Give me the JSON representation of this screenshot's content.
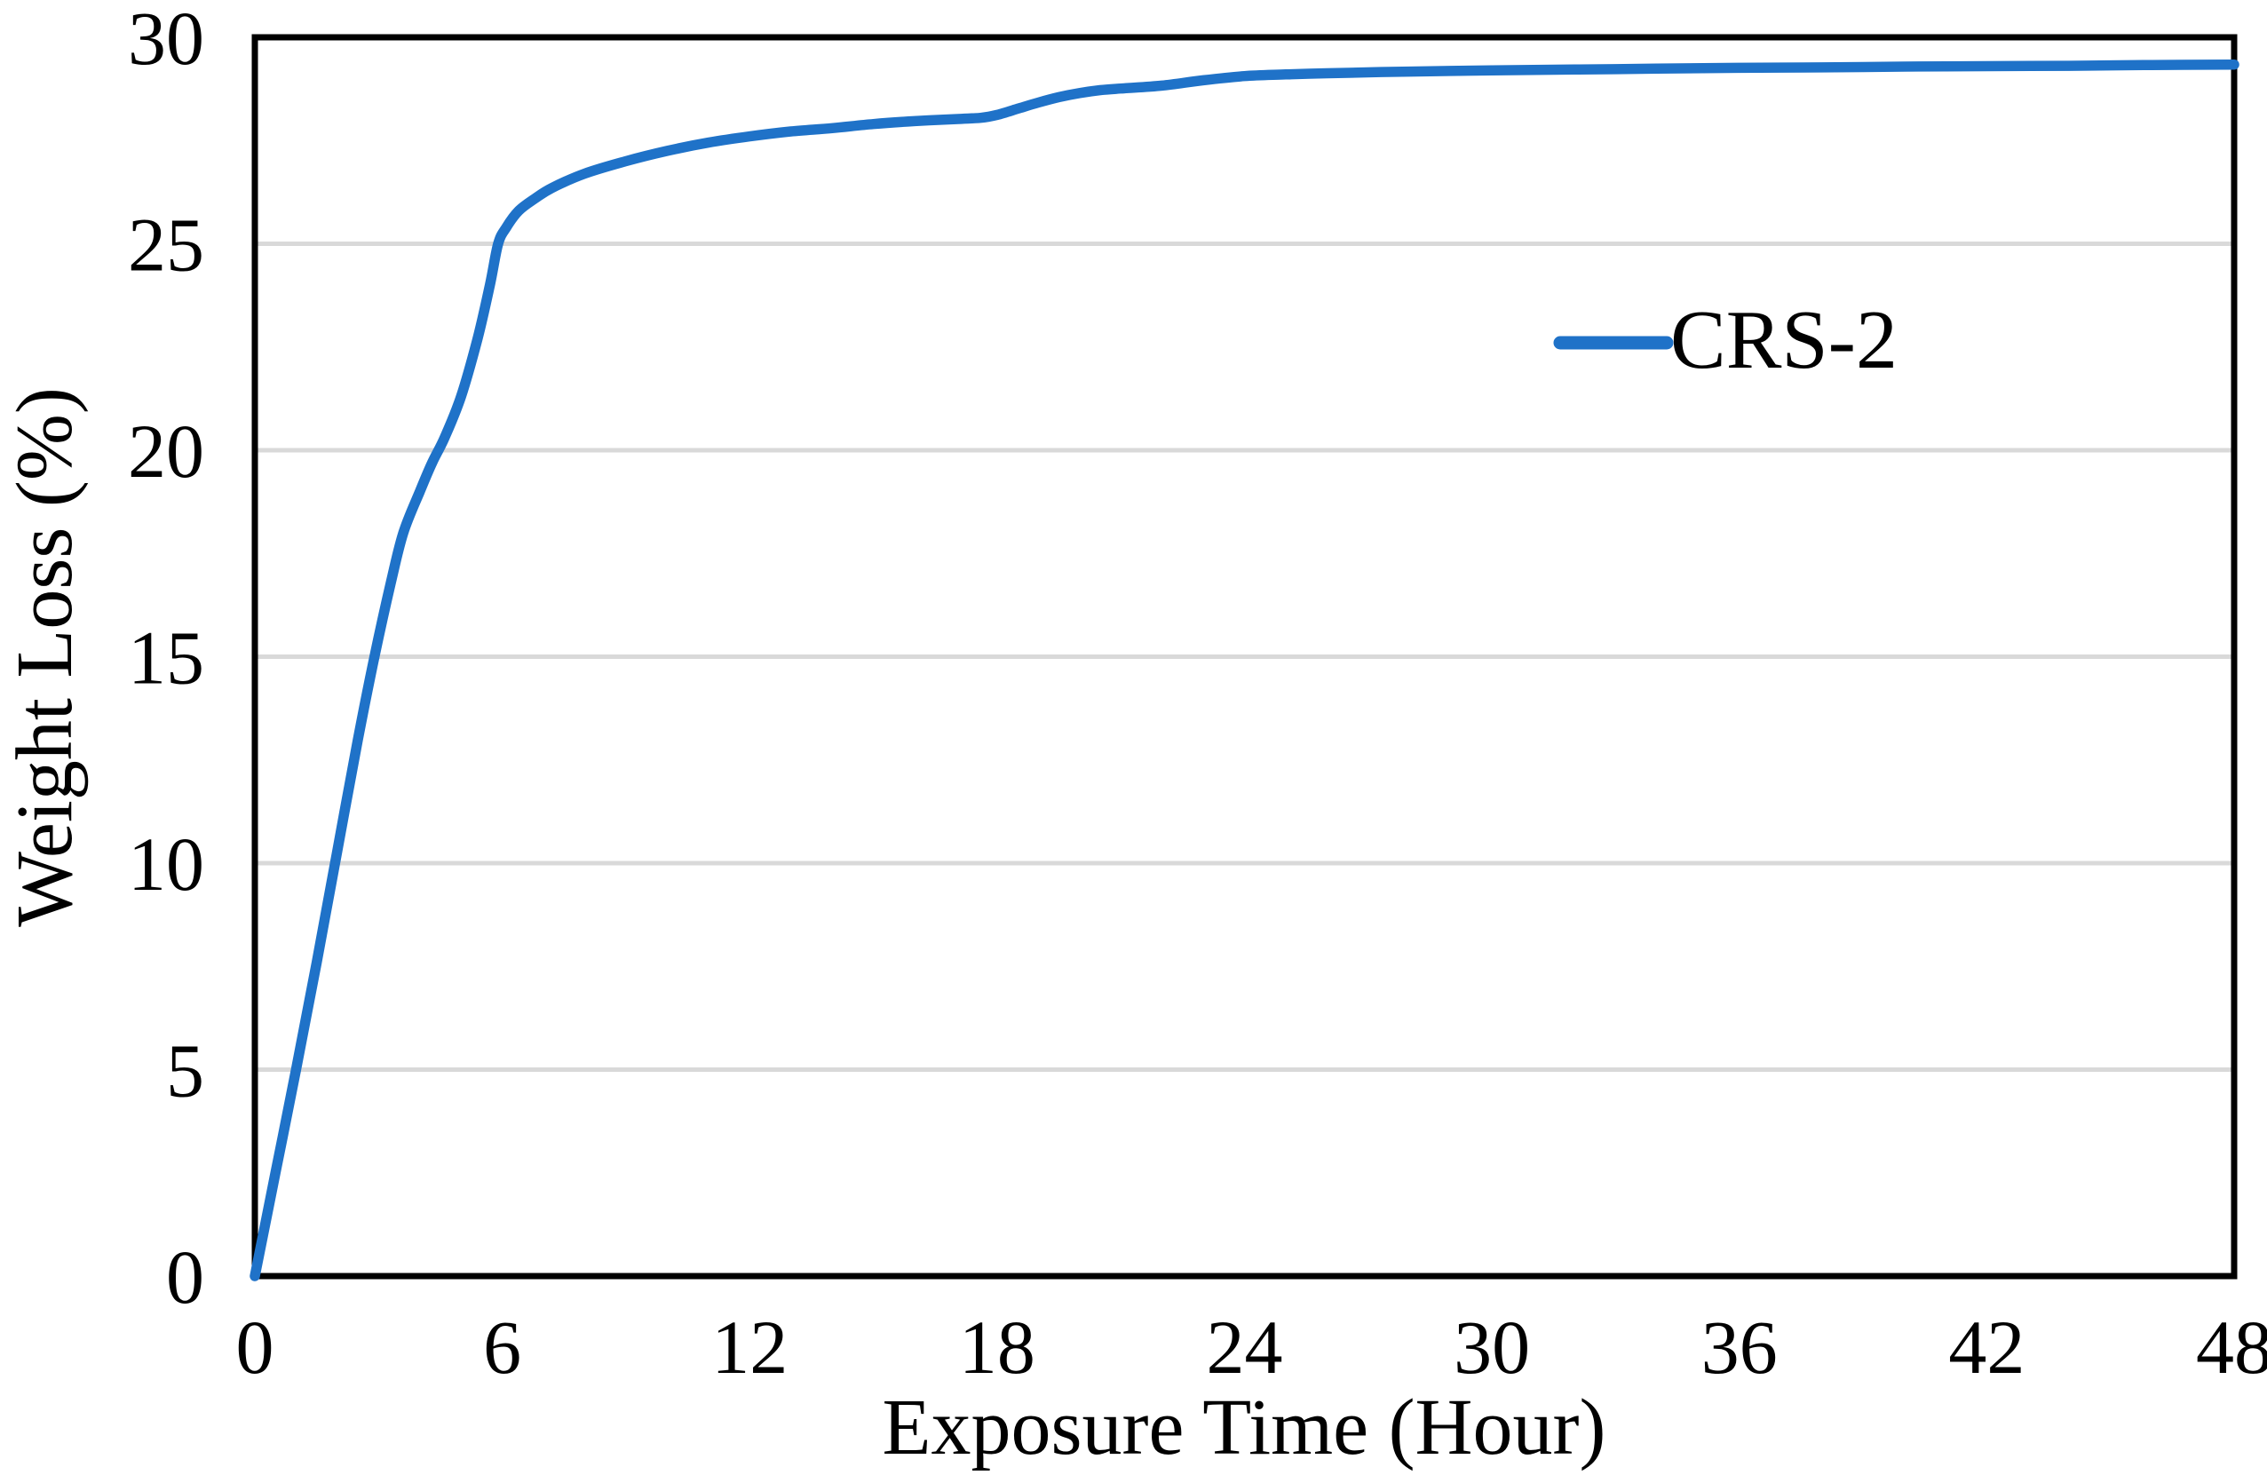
{
  "chart_data": {
    "type": "line",
    "title": "",
    "xlabel": "Exposure Time (Hour)",
    "ylabel": "Weight Loss (%)",
    "xlim": [
      0,
      48
    ],
    "ylim": [
      0,
      30
    ],
    "xticks": [
      0,
      6,
      12,
      18,
      24,
      30,
      36,
      42,
      48
    ],
    "yticks": [
      0,
      5,
      10,
      15,
      20,
      25,
      30
    ],
    "grid": "horizontal-only",
    "legend_position": "inside-upper-right",
    "colors": {
      "series_line": "#1F72C8",
      "gridline": "#D9D9D9",
      "plot_border": "#000000",
      "text": "#000000",
      "background": "#FFFFFF"
    },
    "series": [
      {
        "name": "CRS-2",
        "color": "#1F72C8",
        "smoothed": true,
        "points": [
          [
            0,
            0
          ],
          [
            0.5,
            2.5
          ],
          [
            1,
            5.0
          ],
          [
            1.5,
            7.6
          ],
          [
            2,
            10.3
          ],
          [
            2.5,
            13.0
          ],
          [
            2.9,
            15.0
          ],
          [
            3.3,
            16.8
          ],
          [
            3.6,
            18.0
          ],
          [
            4,
            19.0
          ],
          [
            4.3,
            19.7
          ],
          [
            4.6,
            20.3
          ],
          [
            5,
            21.3
          ],
          [
            5.4,
            22.7
          ],
          [
            5.7,
            24.0
          ],
          [
            5.9,
            25.0
          ],
          [
            6.1,
            25.4
          ],
          [
            6.4,
            25.8
          ],
          [
            6.8,
            26.1
          ],
          [
            7.2,
            26.35
          ],
          [
            8,
            26.7
          ],
          [
            9,
            27.0
          ],
          [
            10,
            27.25
          ],
          [
            11,
            27.45
          ],
          [
            12,
            27.6
          ],
          [
            13,
            27.72
          ],
          [
            14,
            27.8
          ],
          [
            15,
            27.9
          ],
          [
            16,
            27.97
          ],
          [
            17,
            28.02
          ],
          [
            17.6,
            28.05
          ],
          [
            18,
            28.12
          ],
          [
            18.5,
            28.27
          ],
          [
            19,
            28.42
          ],
          [
            19.5,
            28.55
          ],
          [
            20,
            28.65
          ],
          [
            20.5,
            28.72
          ],
          [
            21,
            28.76
          ],
          [
            22,
            28.83
          ],
          [
            23,
            28.96
          ],
          [
            24,
            29.06
          ],
          [
            25,
            29.1
          ],
          [
            26,
            29.13
          ],
          [
            28,
            29.17
          ],
          [
            30,
            29.2
          ],
          [
            32,
            29.22
          ],
          [
            34,
            29.24
          ],
          [
            36,
            29.26
          ],
          [
            38,
            29.27
          ],
          [
            40,
            29.29
          ],
          [
            42,
            29.3
          ],
          [
            44,
            29.31
          ],
          [
            46,
            29.33
          ],
          [
            48,
            29.34
          ]
        ]
      }
    ]
  }
}
